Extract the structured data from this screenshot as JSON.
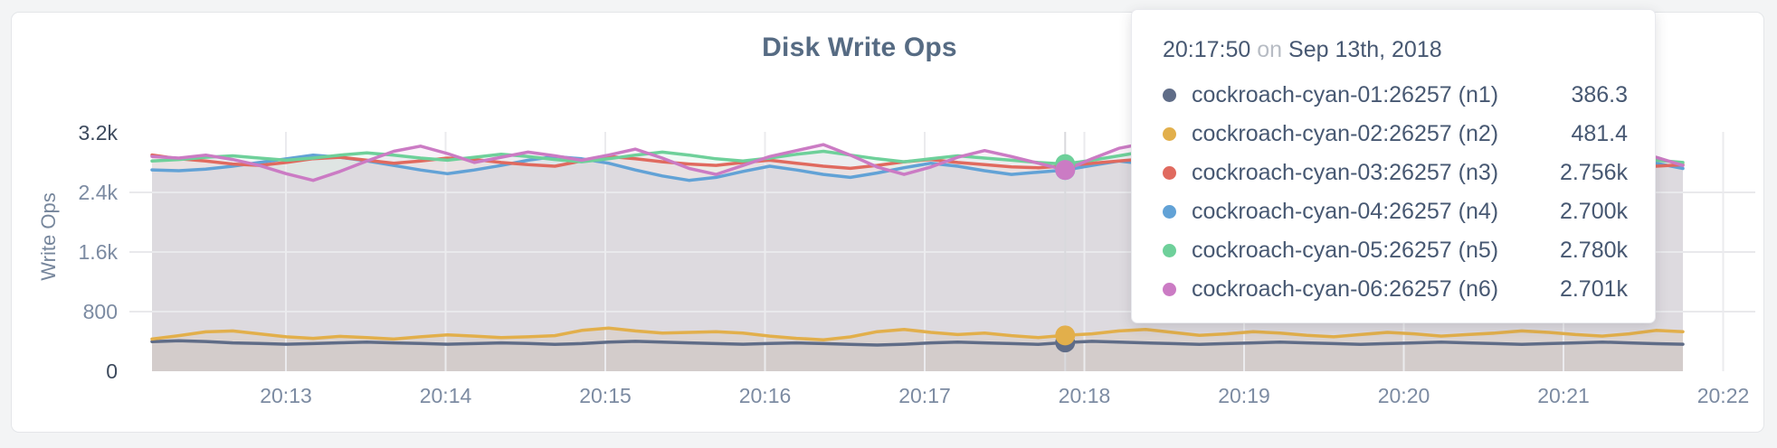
{
  "card": {
    "title": "Disk Write Ops"
  },
  "axes": {
    "y_label": "Write Ops",
    "y_ticks": [
      {
        "label": "3.2k",
        "value": 3200,
        "strong": true
      },
      {
        "label": "2.4k",
        "value": 2400,
        "strong": false
      },
      {
        "label": "1.6k",
        "value": 1600,
        "strong": false
      },
      {
        "label": "800",
        "value": 800,
        "strong": false
      },
      {
        "label": "0",
        "value": 0,
        "strong": true
      }
    ],
    "x_ticks": [
      "20:13",
      "20:14",
      "20:15",
      "20:16",
      "20:17",
      "20:18",
      "20:19",
      "20:20",
      "20:21",
      "20:22"
    ]
  },
  "tooltip": {
    "separator_word": "on"
  },
  "chart_data": {
    "type": "line",
    "title": "Disk Write Ops",
    "xlabel": "",
    "ylabel": "Write Ops",
    "ylim": [
      0,
      3200
    ],
    "grid": true,
    "legend_position": "tooltip",
    "hover": {
      "index": 34,
      "time": "20:17:50",
      "date": "Sep 13th, 2018"
    },
    "series": [
      {
        "name": "cockroach-cyan-01:26257 (n1)",
        "color": "#5f6c87",
        "hover_value": "386.3",
        "values": [
          398,
          408,
          399,
          381,
          372,
          363,
          371,
          382,
          391,
          381,
          372,
          362,
          371,
          381,
          372,
          361,
          371,
          391,
          401,
          391,
          381,
          371,
          362,
          372,
          381,
          371,
          361,
          352,
          362,
          381,
          391,
          381,
          371,
          361,
          386,
          401,
          391,
          381,
          371,
          361,
          371,
          381,
          391,
          381,
          371,
          361,
          371,
          381,
          391,
          381,
          371,
          361,
          371,
          381,
          391,
          381,
          370,
          362
        ]
      },
      {
        "name": "cockroach-cyan-02:26257 (n2)",
        "color": "#e2af4b",
        "hover_value": "481.4",
        "values": [
          432,
          478,
          528,
          541,
          502,
          462,
          441,
          468,
          451,
          432,
          462,
          488,
          471,
          452,
          462,
          478,
          548,
          578,
          541,
          512,
          521,
          531,
          511,
          472,
          441,
          422,
          461,
          531,
          561,
          521,
          492,
          512,
          478,
          452,
          481,
          502,
          541,
          561,
          521,
          482,
          502,
          531,
          511,
          482,
          462,
          492,
          521,
          502,
          472,
          492,
          512,
          541,
          521,
          492,
          472,
          502,
          548,
          531
        ]
      },
      {
        "name": "cockroach-cyan-03:26257 (n3)",
        "color": "#e06a5f",
        "hover_value": "2.756k",
        "values": [
          2902,
          2851,
          2822,
          2781,
          2762,
          2801,
          2852,
          2871,
          2832,
          2791,
          2822,
          2861,
          2842,
          2801,
          2772,
          2751,
          2822,
          2881,
          2852,
          2811,
          2781,
          2762,
          2801,
          2832,
          2791,
          2751,
          2722,
          2762,
          2811,
          2841,
          2801,
          2772,
          2742,
          2731,
          2756,
          2791,
          2822,
          2851,
          2801,
          2762,
          2791,
          2832,
          2861,
          2822,
          2781,
          2751,
          2791,
          2851,
          2901,
          2841,
          2791,
          2762,
          2801,
          2841,
          2811,
          2781,
          2752,
          2771
        ]
      },
      {
        "name": "cockroach-cyan-04:26257 (n4)",
        "color": "#62a2d6",
        "hover_value": "2.700k",
        "values": [
          2702,
          2691,
          2712,
          2751,
          2801,
          2851,
          2901,
          2871,
          2822,
          2761,
          2701,
          2651,
          2701,
          2761,
          2831,
          2881,
          2851,
          2791,
          2701,
          2621,
          2561,
          2601,
          2681,
          2751,
          2701,
          2641,
          2601,
          2661,
          2731,
          2791,
          2751,
          2691,
          2641,
          2671,
          2700,
          2761,
          2821,
          2781,
          2701,
          2631,
          2691,
          2761,
          2831,
          2871,
          2811,
          2741,
          2681,
          2721,
          2791,
          2851,
          2801,
          2731,
          2671,
          2711,
          2781,
          2841,
          2791,
          2721
        ]
      },
      {
        "name": "cockroach-cyan-05:26257 (n5)",
        "color": "#6ed09a",
        "hover_value": "2.780k",
        "values": [
          2821,
          2841,
          2871,
          2891,
          2861,
          2831,
          2861,
          2901,
          2931,
          2901,
          2861,
          2831,
          2871,
          2911,
          2881,
          2841,
          2811,
          2851,
          2901,
          2941,
          2901,
          2851,
          2821,
          2861,
          2911,
          2951,
          2901,
          2851,
          2811,
          2851,
          2891,
          2861,
          2831,
          2801,
          2780,
          2831,
          2891,
          2951,
          2981,
          2921,
          2861,
          2821,
          2871,
          2921,
          2881,
          2841,
          2801,
          2851,
          2901,
          2861,
          2821,
          2791,
          2841,
          2891,
          2931,
          2881,
          2831,
          2801
        ]
      },
      {
        "name": "cockroach-cyan-06:26257 (n6)",
        "color": "#cb7bc4",
        "hover_value": "2.701k",
        "values": [
          2882,
          2861,
          2901,
          2841,
          2761,
          2651,
          2561,
          2681,
          2821,
          2951,
          3021,
          2921,
          2801,
          2871,
          2941,
          2891,
          2831,
          2901,
          2981,
          2861,
          2721,
          2641,
          2761,
          2881,
          2961,
          3041,
          2901,
          2741,
          2641,
          2741,
          2871,
          2961,
          2881,
          2791,
          2701,
          2851,
          2991,
          3061,
          2921,
          2781,
          2701,
          2811,
          2931,
          3011,
          2891,
          2761,
          2681,
          2801,
          2941,
          3031,
          2901,
          2771,
          2691,
          2791,
          2911,
          2991,
          2871,
          2761
        ]
      }
    ]
  }
}
